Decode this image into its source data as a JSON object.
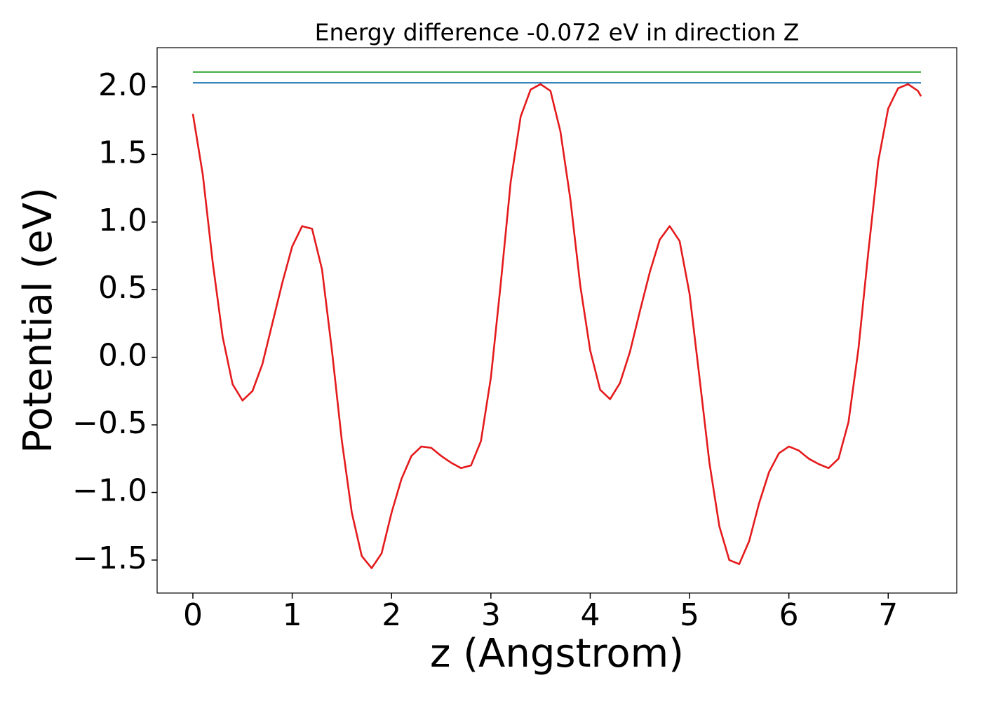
{
  "chart_data": {
    "type": "line",
    "title": "Energy difference -0.072 eV in direction Z",
    "x_label": "z (Angstrom)",
    "y_label": "Potential (eV)",
    "xlim": [
      -0.36,
      7.69
    ],
    "ylim": [
      -1.744,
      2.29
    ],
    "xticks": [
      0,
      1,
      2,
      3,
      4,
      5,
      6,
      7
    ],
    "yticks": [
      {
        "value": -1.5,
        "label": "−1.5"
      },
      {
        "value": -1.0,
        "label": "−1.0"
      },
      {
        "value": -0.5,
        "label": "−0.5"
      },
      {
        "value": 0,
        "label": "0.0"
      },
      0.5,
      {
        "value": 1.0,
        "label": "1.0"
      },
      1.5,
      {
        "value": 2.0,
        "label": "2.0"
      }
    ],
    "series": [
      {
        "color": "#2ca02c",
        "x": [
          0,
          7.33
        ],
        "values": [
          2.11,
          2.11
        ]
      },
      {
        "color": "#1f77b4",
        "x": [
          0,
          7.33
        ],
        "values": [
          2.03,
          2.03
        ]
      },
      {
        "color": "#e41a1c",
        "x": [
          0,
          0.1,
          0.2,
          0.3,
          0.4,
          0.5,
          0.6,
          0.7,
          0.8,
          0.9,
          1.0,
          1.1,
          1.2,
          1.3,
          1.4,
          1.5,
          1.6,
          1.7,
          1.8,
          1.9,
          2.0,
          2.1,
          2.2,
          2.3,
          2.4,
          2.5,
          2.6,
          2.7,
          2.8,
          2.9,
          3.0,
          3.1,
          3.2,
          3.3,
          3.4,
          3.5,
          3.6,
          3.7,
          3.8,
          3.9,
          4.0,
          4.1,
          4.2,
          4.3,
          4.4,
          4.5,
          4.6,
          4.7,
          4.8,
          4.9,
          5.0,
          5.1,
          5.2,
          5.3,
          5.4,
          5.5,
          5.6,
          5.7,
          5.8,
          5.9,
          6.0,
          6.1,
          6.2,
          6.3,
          6.4,
          6.5,
          6.6,
          6.7,
          6.8,
          6.9,
          7.0,
          7.1,
          7.2,
          7.3,
          7.33
        ],
        "values": [
          1.8,
          1.35,
          0.7,
          0.15,
          -0.2,
          -0.32,
          -0.25,
          -0.05,
          0.25,
          0.55,
          0.82,
          0.97,
          0.95,
          0.65,
          0.05,
          -0.62,
          -1.15,
          -1.47,
          -1.56,
          -1.45,
          -1.15,
          -0.9,
          -0.73,
          -0.66,
          -0.67,
          -0.73,
          -0.78,
          -0.82,
          -0.8,
          -0.62,
          -0.15,
          0.55,
          1.3,
          1.78,
          1.98,
          2.02,
          1.97,
          1.67,
          1.17,
          0.53,
          0.05,
          -0.24,
          -0.31,
          -0.19,
          0.04,
          0.34,
          0.63,
          0.87,
          0.97,
          0.86,
          0.47,
          -0.15,
          -0.78,
          -1.25,
          -1.5,
          -1.53,
          -1.36,
          -1.08,
          -0.85,
          -0.71,
          -0.66,
          -0.69,
          -0.75,
          -0.79,
          -0.82,
          -0.75,
          -0.48,
          0.06,
          0.78,
          1.45,
          1.84,
          1.99,
          2.02,
          1.97,
          1.93
        ]
      }
    ]
  }
}
